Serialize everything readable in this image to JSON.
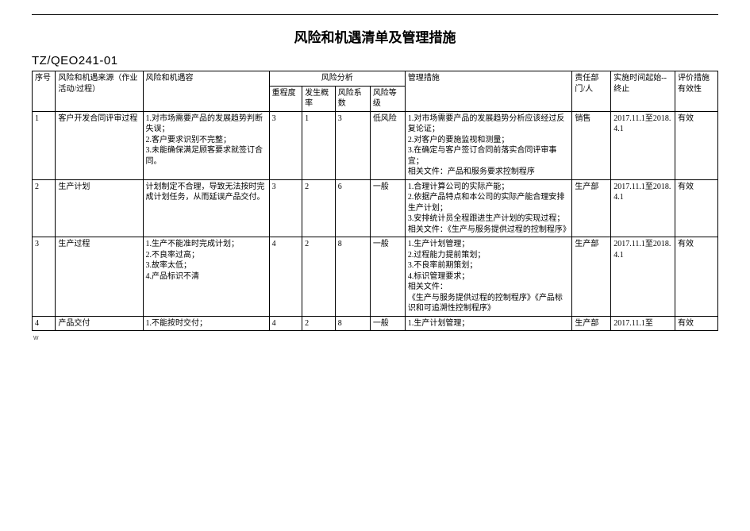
{
  "title": "风险和机遇清单及管理措施",
  "doc_code": "TZ/QEO241-01",
  "header": {
    "seq": "序号",
    "source": "风险和机遇来源（作业活动/过程）",
    "content": "风险和机遇容",
    "analysis_group": "风险分析",
    "severity": "重程度",
    "probability": "发生概率",
    "coefficient": "风险系数",
    "grade": "风险等级",
    "measures": "管理措施",
    "dept": "责任部门/人",
    "time": "实施时间起始--终止",
    "evaluation": "评价措施有效性"
  },
  "rows": [
    {
      "seq": "1",
      "source": "客户开发合同评审过程",
      "content": "1.对市场需要产品的发展趋势判断失误；\n2.客户要求识别不完整；\n3.未能确保满足顾客要求就签订合同。",
      "severity": "3",
      "probability": "1",
      "coefficient": "3",
      "grade": "低风险",
      "measures": "1.对市场需要产品的发展趋势分析应该经过反复论证；\n2.对客户的要施监视和测量；\n3.在确定与客户签订合同前落实合同评审事宜；\n相关文件：产品和服务要求控制程序",
      "dept": "销售",
      "time": "2017.11.1至2018.4.1",
      "evaluation": "有效"
    },
    {
      "seq": "2",
      "source": "生产计划",
      "content": "计划制定不合理，导致无法按时完成计划任务，从而延误产品交付。",
      "severity": "3",
      "probability": "2",
      "coefficient": "6",
      "grade": "一般",
      "measures": "1.合理计算公司的实际产能；\n2.依据产品特点和本公司的实际产能合理安排生产计划；\n3.安排统计员全程跟进生产计划的实现过程；\n相关文件：《生产与服务提供过程的控制程序》",
      "dept": "生产部",
      "time": "2017.11.1至2018.4.1",
      "evaluation": "有效"
    },
    {
      "seq": "3",
      "source": "生产过程",
      "content": "1.生产不能准时完成计划；\n2.不良率过高；\n3.故率太低；\n4.产品标识不清",
      "severity": "4",
      "probability": "2",
      "coefficient": "8",
      "grade": "一般",
      "measures": "1.生产计划管理；\n2.过程能力提前策划；\n3.不良率前期策划；\n4.标识管理要求；\n相关文件：\n《生产与服务提供过程的控制程序》《产品标识和可追溯性控制程序》",
      "dept": "生产部",
      "time": "2017.11.1至2018.4.1",
      "evaluation": "有效"
    },
    {
      "seq": "4",
      "source": "产品交付",
      "content": "1.不能按时交付；",
      "severity": "4",
      "probability": "2",
      "coefficient": "8",
      "grade": "一般",
      "measures": "1.生产计划管理；",
      "dept": "生产部",
      "time": "2017.11.1至",
      "evaluation": "有效"
    }
  ],
  "footer": "w"
}
